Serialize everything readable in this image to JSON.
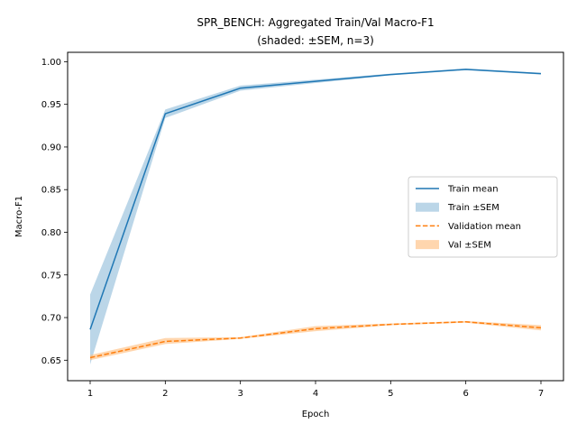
{
  "chart_data": {
    "type": "line",
    "title": "SPR_BENCH: Aggregated Train/Val Macro-F1",
    "subtitle": "(shaded: ±SEM, n=3)",
    "xlabel": "Epoch",
    "ylabel": "Macro-F1",
    "x": [
      1,
      2,
      3,
      4,
      5,
      6,
      7
    ],
    "xticks": [
      "1",
      "2",
      "3",
      "4",
      "5",
      "6",
      "7"
    ],
    "yticks": [
      "0.65",
      "0.70",
      "0.75",
      "0.80",
      "0.85",
      "0.90",
      "0.95",
      "1.00"
    ],
    "xlim": [
      0.7,
      7.3
    ],
    "ylim": [
      0.626,
      1.011
    ],
    "grid": false,
    "legend_position": "center-right",
    "series": [
      {
        "name": "Train mean",
        "band_name": "Train ±SEM",
        "color": "#1f77b4",
        "band_color": "#1f77b4",
        "linestyle": "solid",
        "values": [
          0.686,
          0.939,
          0.969,
          0.977,
          0.985,
          0.991,
          0.986
        ],
        "lower": [
          0.645,
          0.934,
          0.966,
          0.975,
          0.984,
          0.99,
          0.985
        ],
        "upper": [
          0.727,
          0.944,
          0.972,
          0.979,
          0.986,
          0.992,
          0.987
        ]
      },
      {
        "name": "Validation mean",
        "band_name": "Val ±SEM",
        "color": "#ff7f0e",
        "band_color": "#ffbb78",
        "linestyle": "dashed",
        "values": [
          0.653,
          0.672,
          0.676,
          0.687,
          0.692,
          0.695,
          0.688
        ],
        "lower": [
          0.65,
          0.669,
          0.675,
          0.684,
          0.691,
          0.694,
          0.685
        ],
        "upper": [
          0.656,
          0.676,
          0.677,
          0.69,
          0.693,
          0.696,
          0.691
        ]
      }
    ]
  }
}
